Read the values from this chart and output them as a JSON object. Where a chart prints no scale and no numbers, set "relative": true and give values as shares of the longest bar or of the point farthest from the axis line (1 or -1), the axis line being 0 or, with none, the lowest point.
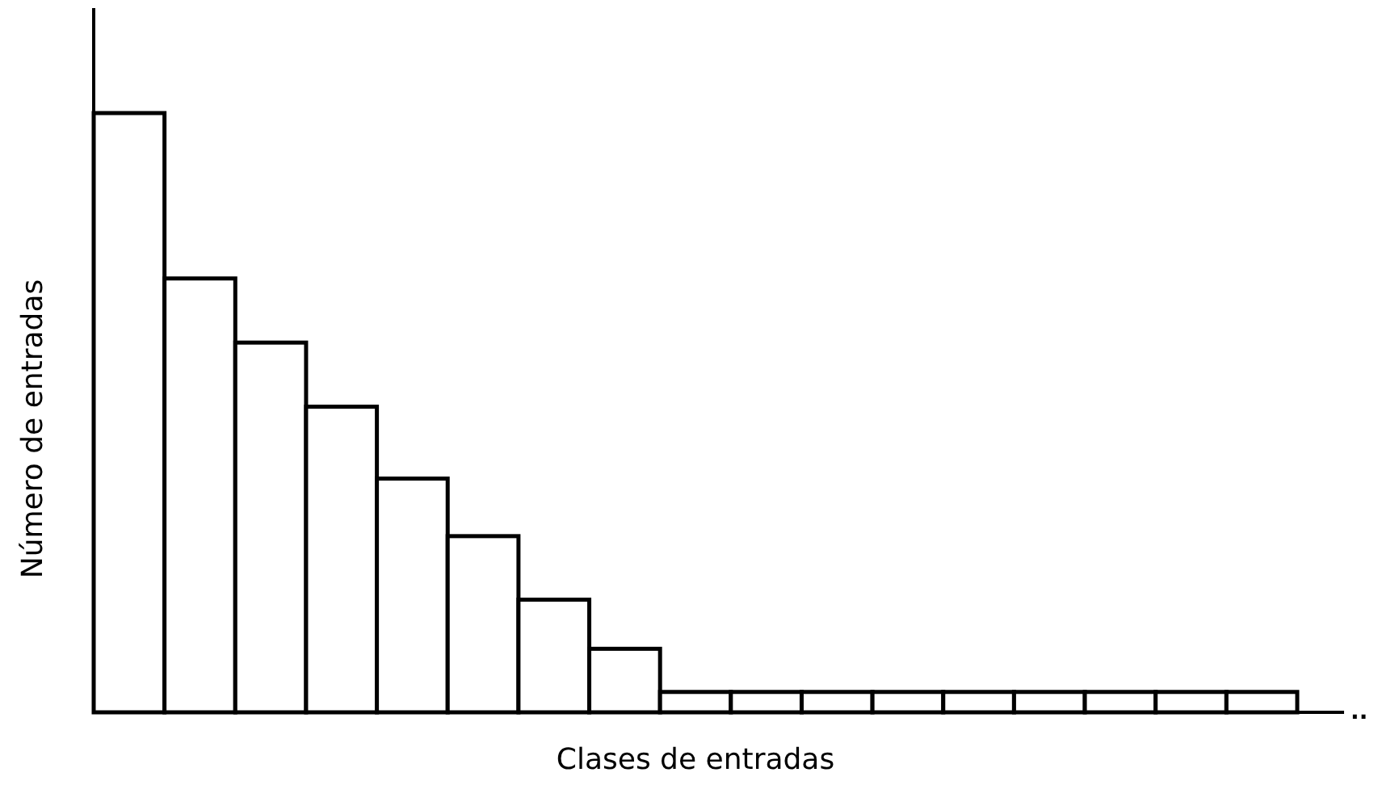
{
  "chart_data": {
    "type": "bar",
    "relative": true,
    "xlabel": "Clases de entradas",
    "ylabel": "Número de entradas",
    "categories": [
      null,
      null,
      null,
      null,
      null,
      null,
      null,
      null,
      null,
      null,
      null,
      null,
      null,
      null,
      null,
      null,
      null
    ],
    "values": [
      1,
      0.724,
      0.617,
      0.51,
      0.39,
      0.294,
      0.188,
      0.106,
      0.034,
      0.034,
      0.034,
      0.034,
      0.034,
      0.034,
      0.034,
      0.034,
      0.034
    ],
    "color": "#ffffff",
    "annotations": [
      ".."
    ]
  }
}
